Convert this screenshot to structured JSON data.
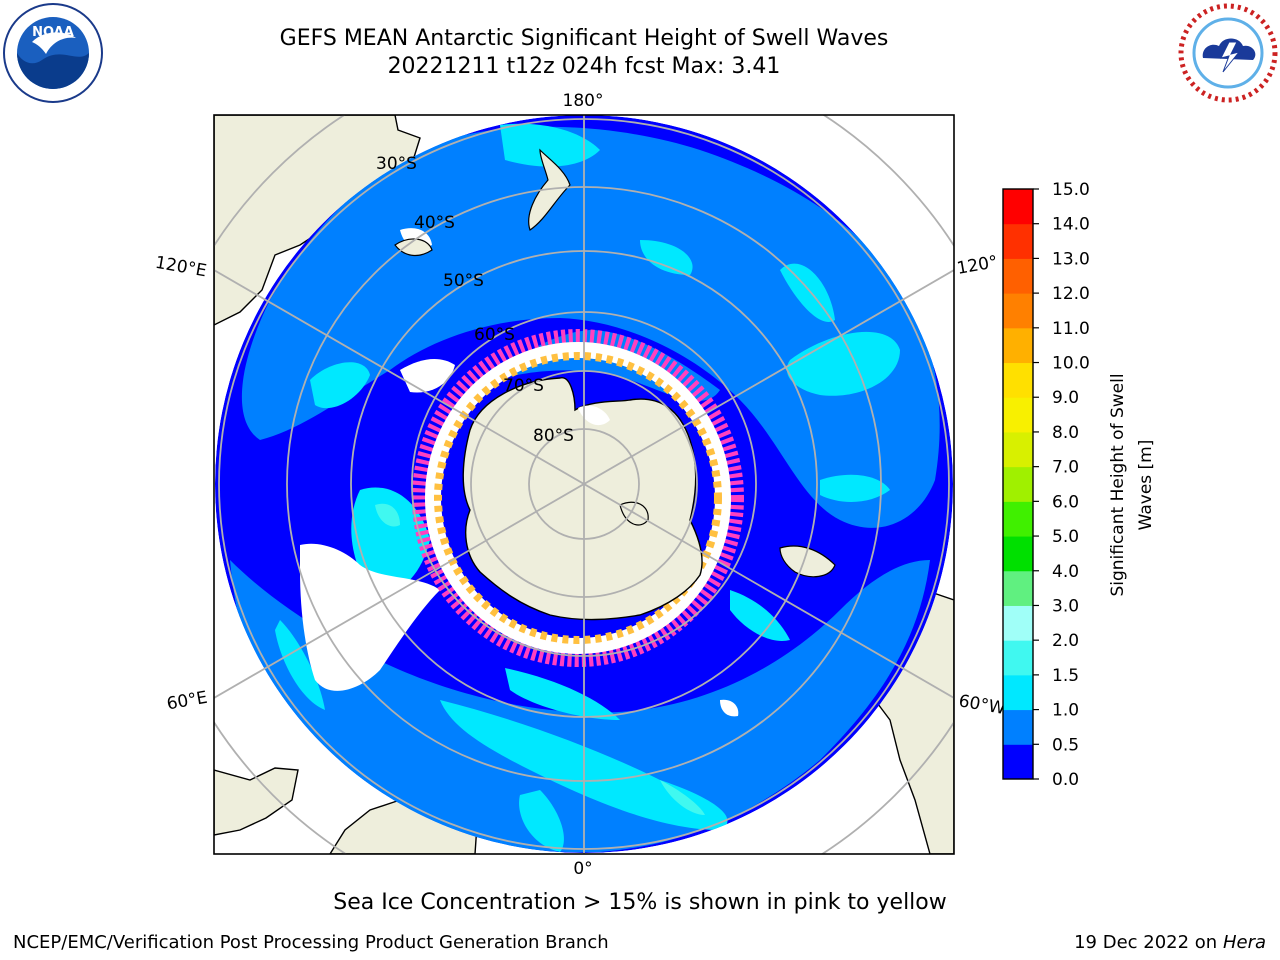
{
  "header": {
    "title_line1": "GEFS MEAN Antarctic Significant Height of Swell Waves",
    "title_line2": "20221211 t12z 024h fcst   Max: 3.41"
  },
  "logos": {
    "left": {
      "icon": "noaa-logo",
      "text": "NOAA"
    },
    "right": {
      "icon": "nws-logo"
    }
  },
  "map": {
    "projection": "south-polar-stereographic",
    "longitude_labels": {
      "top": "180°",
      "bottom": "0°",
      "upper_left": "120°E",
      "lower_left": "60°E",
      "upper_right": "120°",
      "lower_right": "60°W"
    },
    "latitude_labels": [
      "30°S",
      "40°S",
      "50°S",
      "60°S",
      "70°S",
      "80°S"
    ],
    "colors": {
      "land": "#eeeedc",
      "grid": "#b0b0b0",
      "ice_pink": "#ff40c0",
      "ice_yellow": "#ffc040"
    }
  },
  "colorbar": {
    "label": "Significant Height of Swell Waves [m]",
    "tick_labels": [
      "0.0",
      "0.5",
      "1.0",
      "1.5",
      "2.0",
      "3.0",
      "4.0",
      "5.0",
      "6.0",
      "7.0",
      "8.0",
      "9.0",
      "10.0",
      "11.0",
      "12.0",
      "13.0",
      "14.0",
      "15.0"
    ],
    "colors": [
      "#0000ff",
      "#0080ff",
      "#00e8ff",
      "#40f8f0",
      "#a0fff8",
      "#60f080",
      "#00e000",
      "#40f000",
      "#a0f000",
      "#d8f000",
      "#f8f000",
      "#ffe000",
      "#ffb000",
      "#ff8000",
      "#ff6000",
      "#ff3000",
      "#ff0000"
    ]
  },
  "caption": "Sea Ice Concentration > 15% is shown in pink to yellow",
  "footer": {
    "left": "NCEP/EMC/Verification Post Processing Product Generation Branch",
    "right_date": "19 Dec 2022 on",
    "right_machine": "Hera"
  }
}
